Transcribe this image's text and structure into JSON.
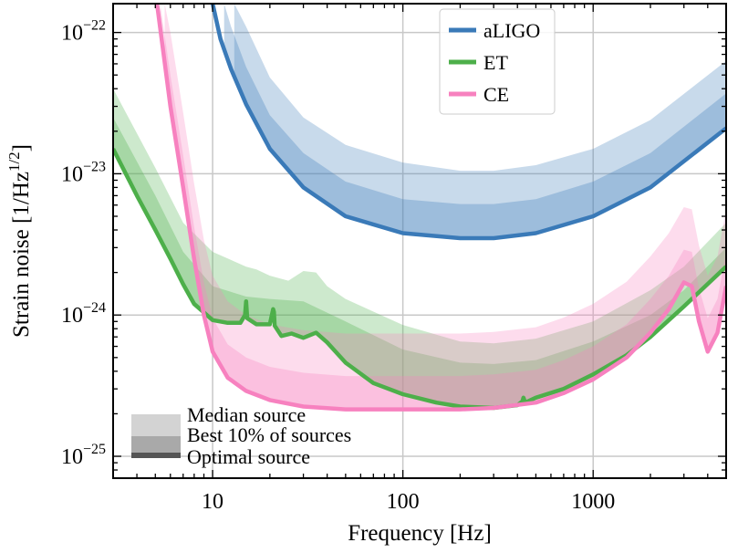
{
  "chart_data": {
    "type": "area",
    "xlabel": "Frequency [Hz]",
    "ylabel_main": "Strain noise [1/Hz",
    "ylabel_sup": "1/2",
    "ylabel_close": "]",
    "xscale": "log",
    "yscale": "log",
    "xlim": [
      3,
      5000
    ],
    "ylim": [
      7e-26,
      1.6e-22
    ],
    "grid": true,
    "legend_placement": "top-center",
    "x_ticks": [
      {
        "value": 10,
        "label": "10"
      },
      {
        "value": 100,
        "label": "100"
      },
      {
        "value": 1000,
        "label": "1000"
      }
    ],
    "y_ticks": [
      {
        "value": 1e-25,
        "base": "10",
        "exp": "−25"
      },
      {
        "value": 1e-24,
        "base": "10",
        "exp": "−24"
      },
      {
        "value": 1e-23,
        "base": "10",
        "exp": "−23"
      },
      {
        "value": 1e-22,
        "base": "10",
        "exp": "−22"
      }
    ],
    "band_key": {
      "entries": [
        "Median source",
        "Best 10% of sources",
        "Optimal source"
      ],
      "shades": [
        "#d3d3d3",
        "#a9a9a9",
        "#555555"
      ]
    },
    "series": [
      {
        "name": "aLIGO",
        "color": "#3a7ab8",
        "optimal": {
          "x": [
            10,
            11,
            12.5,
            15,
            20,
            30,
            50,
            100,
            200,
            300,
            500,
            1000,
            2000,
            5000
          ],
          "y": [
            1.6e-22,
            9e-23,
            5.5e-23,
            3.1e-23,
            1.5e-23,
            8e-24,
            5e-24,
            3.8e-24,
            3.5e-24,
            3.5e-24,
            3.8e-24,
            5e-24,
            8e-24,
            2.1e-23
          ]
        },
        "best10": {
          "x": [
            11.5,
            12.5,
            15,
            20,
            30,
            50,
            100,
            200,
            300,
            500,
            1000,
            2000,
            5000
          ],
          "y": [
            1.6e-22,
            1.1e-22,
            5.7e-23,
            2.6e-23,
            1.4e-23,
            8.8e-24,
            6.6e-24,
            6.1e-24,
            6.1e-24,
            6.6e-24,
            8.8e-24,
            1.4e-23,
            3.7e-23
          ]
        },
        "median": {
          "x": [
            13,
            15,
            20,
            30,
            50,
            100,
            200,
            300,
            500,
            1000,
            2000,
            5000
          ],
          "y": [
            1.6e-22,
            1.1e-22,
            4.8e-23,
            2.5e-23,
            1.6e-23,
            1.2e-23,
            1.05e-23,
            1.05e-23,
            1.15e-23,
            1.5e-23,
            2.4e-23,
            6.3e-23
          ]
        }
      },
      {
        "name": "ET",
        "color": "#4daf4a",
        "optimal": {
          "x": [
            3,
            4,
            5,
            6,
            7,
            8,
            10,
            12,
            14,
            14.8,
            15,
            15.2,
            17,
            20,
            20.8,
            21,
            21.2,
            23,
            26,
            30,
            35,
            40,
            50,
            70,
            100,
            150,
            200,
            300,
            400,
            425,
            430,
            440,
            500,
            700,
            1000,
            1500,
            2000,
            3000,
            5000
          ],
          "y": [
            1.5e-23,
            7e-24,
            4e-24,
            2.5e-24,
            1.65e-24,
            1.2e-24,
            9.2e-25,
            8.8e-25,
            8.8e-25,
            1e-24,
            1.25e-24,
            9.5e-25,
            8.6e-25,
            8.6e-25,
            1.1e-24,
            1.05e-24,
            8.4e-25,
            7.1e-25,
            7.4e-25,
            6.9e-25,
            7.5e-25,
            6.4e-25,
            4.6e-25,
            3.3e-25,
            2.75e-25,
            2.4e-25,
            2.25e-25,
            2.2e-25,
            2.3e-25,
            2.45e-25,
            2.6e-25,
            2.4e-25,
            2.6e-25,
            3e-25,
            3.8e-25,
            5.2e-25,
            7e-25,
            1.15e-24,
            2.2e-24
          ]
        },
        "best10": {
          "x": [
            3,
            5,
            7,
            10,
            15,
            20,
            30,
            50,
            100,
            200,
            300,
            500,
            1000,
            2000,
            3000,
            5000
          ],
          "y": [
            2.5e-23,
            7e-24,
            2.8e-24,
            1.6e-24,
            1.35e-24,
            1.3e-24,
            1.25e-24,
            9e-25,
            5.7e-25,
            4.6e-25,
            4.5e-25,
            4.8e-25,
            6.5e-25,
            1e-24,
            1.5e-24,
            3e-24
          ]
        },
        "median": {
          "x": [
            3,
            5,
            7,
            10,
            15,
            17,
            20,
            25,
            30,
            35,
            40,
            50,
            100,
            200,
            300,
            500,
            1000,
            2000,
            3000,
            5000
          ],
          "y": [
            4e-23,
            1.1e-23,
            4.5e-24,
            2.8e-24,
            2.2e-24,
            2.1e-24,
            1.9e-24,
            1.75e-24,
            2.05e-24,
            2e-24,
            1.6e-24,
            1.3e-24,
            8.5e-25,
            6.5e-25,
            6.3e-25,
            6.8e-25,
            9e-25,
            1.5e-24,
            2.2e-24,
            4.5e-24
          ]
        }
      },
      {
        "name": "CE",
        "color": "#f781bf",
        "optimal": {
          "x": [
            5.1,
            6,
            7,
            8,
            9,
            10,
            12,
            15,
            20,
            30,
            50,
            100,
            200,
            300,
            500,
            700,
            1000,
            1500,
            2000,
            2500,
            3000,
            3300,
            3600,
            4000,
            4500,
            5000
          ],
          "y": [
            1.6e-22,
            3e-23,
            8e-24,
            2.5e-24,
            1e-24,
            5.5e-25,
            3.6e-25,
            2.9e-25,
            2.5e-25,
            2.25e-25,
            2.15e-25,
            2.15e-25,
            2.15e-25,
            2.2e-25,
            2.4e-25,
            2.8e-25,
            3.5e-25,
            5e-25,
            7.5e-25,
            1.1e-24,
            1.7e-24,
            1.6e-24,
            9e-25,
            5.5e-25,
            7.5e-25,
            1.6e-24
          ]
        },
        "best10": {
          "x": [
            5.3,
            6,
            7,
            8,
            9,
            10,
            12,
            15,
            20,
            30,
            50,
            100,
            200,
            300,
            500,
            700,
            1000,
            1500,
            2000,
            2500,
            3000,
            3300,
            3600,
            4000,
            4500,
            5000
          ],
          "y": [
            1.6e-22,
            5e-23,
            1.35e-23,
            4.2e-24,
            1.7e-24,
            9.5e-25,
            6.2e-25,
            5e-25,
            4.3e-25,
            3.9e-25,
            3.7e-25,
            3.7e-25,
            3.7e-25,
            3.8e-25,
            4.1e-25,
            4.8e-25,
            6e-25,
            8.6e-25,
            1.3e-24,
            1.9e-24,
            2.9e-24,
            2.8e-24,
            1.55e-24,
            9.5e-25,
            1.3e-24,
            2.8e-24
          ]
        },
        "median": {
          "x": [
            5.6,
            6,
            7,
            8,
            9,
            10,
            12,
            15,
            20,
            30,
            50,
            100,
            200,
            300,
            500,
            700,
            1000,
            1500,
            2000,
            2500,
            3000,
            3300,
            3600,
            4000,
            4500,
            5000
          ],
          "y": [
            1.6e-22,
            1e-22,
            2.7e-23,
            8.5e-24,
            3.4e-24,
            1.9e-24,
            1.25e-24,
            1e-24,
            8.6e-25,
            7.8e-25,
            7.4e-25,
            7.4e-25,
            7.4e-25,
            7.6e-25,
            8.2e-25,
            9.6e-25,
            1.2e-24,
            1.72e-24,
            2.6e-24,
            3.8e-24,
            5.8e-24,
            5.6e-24,
            3.1e-24,
            1.9e-24,
            2.6e-24,
            5.6e-24
          ]
        }
      }
    ]
  }
}
